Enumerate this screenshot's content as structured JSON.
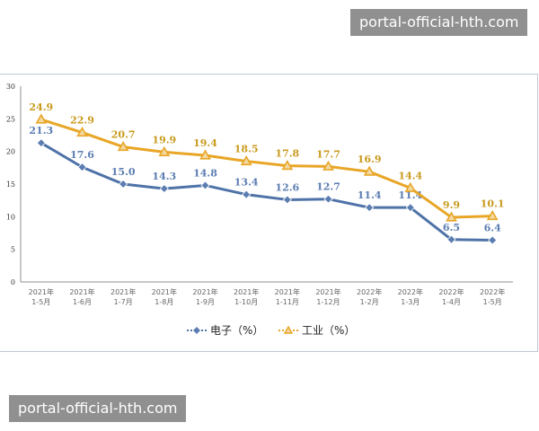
{
  "watermarks": {
    "top": "portal-official-hth.com",
    "bottom": "portal-official-hth.com"
  },
  "chart_data": {
    "type": "line",
    "categories": [
      [
        "2021年",
        "1-5月"
      ],
      [
        "2021年",
        "1-6月"
      ],
      [
        "2021年",
        "1-7月"
      ],
      [
        "2021年",
        "1-8月"
      ],
      [
        "2021年",
        "1-9月"
      ],
      [
        "2021年",
        "1-10月"
      ],
      [
        "2021年",
        "1-11月"
      ],
      [
        "2021年",
        "1-12月"
      ],
      [
        "2022年",
        "1-2月"
      ],
      [
        "2022年",
        "1-3月"
      ],
      [
        "2022年",
        "1-4月"
      ],
      [
        "2022年",
        "1-5月"
      ]
    ],
    "series": [
      {
        "name": "电子（%）",
        "color": "#4f73a8",
        "marker": "diamond",
        "values": [
          21.3,
          17.6,
          15.0,
          14.3,
          14.8,
          13.4,
          12.6,
          12.7,
          11.4,
          11.4,
          6.5,
          6.4
        ],
        "labels": [
          "21.3",
          "17.6",
          "15.0",
          "14.3",
          "14.8",
          "13.4",
          "12.6",
          "12.7",
          "11.4",
          "11.4",
          "6.5",
          "6.4"
        ]
      },
      {
        "name": "工业（%）",
        "color": "#e8a627",
        "marker": "triangle",
        "values": [
          24.9,
          22.9,
          20.7,
          19.9,
          19.4,
          18.5,
          17.8,
          17.7,
          16.9,
          14.4,
          9.9,
          10.1
        ],
        "labels": [
          "24.9",
          "22.9",
          "20.7",
          "19.9",
          "19.4",
          "18.5",
          "17.8",
          "17.7",
          "16.9",
          "14.4",
          "9.9",
          "10.1"
        ]
      }
    ],
    "y_ticks": [
      "0",
      "5",
      "10",
      "15",
      "20",
      "25",
      "30"
    ],
    "ylim": [
      0,
      30
    ],
    "grid": false,
    "legend_position": "bottom"
  }
}
